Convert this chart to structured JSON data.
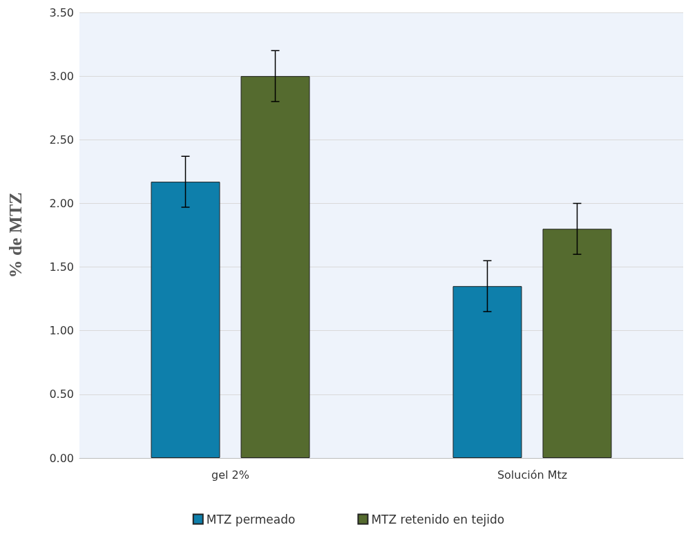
{
  "chart_data": {
    "type": "bar",
    "ylabel": "% de MTZ",
    "categories": [
      "gel 2%",
      "Solución Mtz"
    ],
    "series": [
      {
        "name": "MTZ permeado",
        "color": "#0e7fab",
        "values": [
          2.17,
          1.35
        ],
        "errors": [
          0.2,
          0.2
        ]
      },
      {
        "name": "MTZ retenido en tejido",
        "color": "#556b2f",
        "values": [
          3.0,
          1.8
        ],
        "errors": [
          0.2,
          0.2
        ]
      }
    ],
    "ylim": [
      0,
      3.5
    ],
    "yticks": [
      {
        "value": 0,
        "label": "0.00"
      },
      {
        "value": 0.5,
        "label": "0.50"
      },
      {
        "value": 1,
        "label": "1.00"
      },
      {
        "value": 1.5,
        "label": "1.50"
      },
      {
        "value": 2,
        "label": "2.00"
      },
      {
        "value": 2.5,
        "label": "2.50"
      },
      {
        "value": 3,
        "label": "3.00"
      },
      {
        "value": 3.5,
        "label": "3.50"
      }
    ],
    "grid": "y",
    "legend": "bottom"
  }
}
